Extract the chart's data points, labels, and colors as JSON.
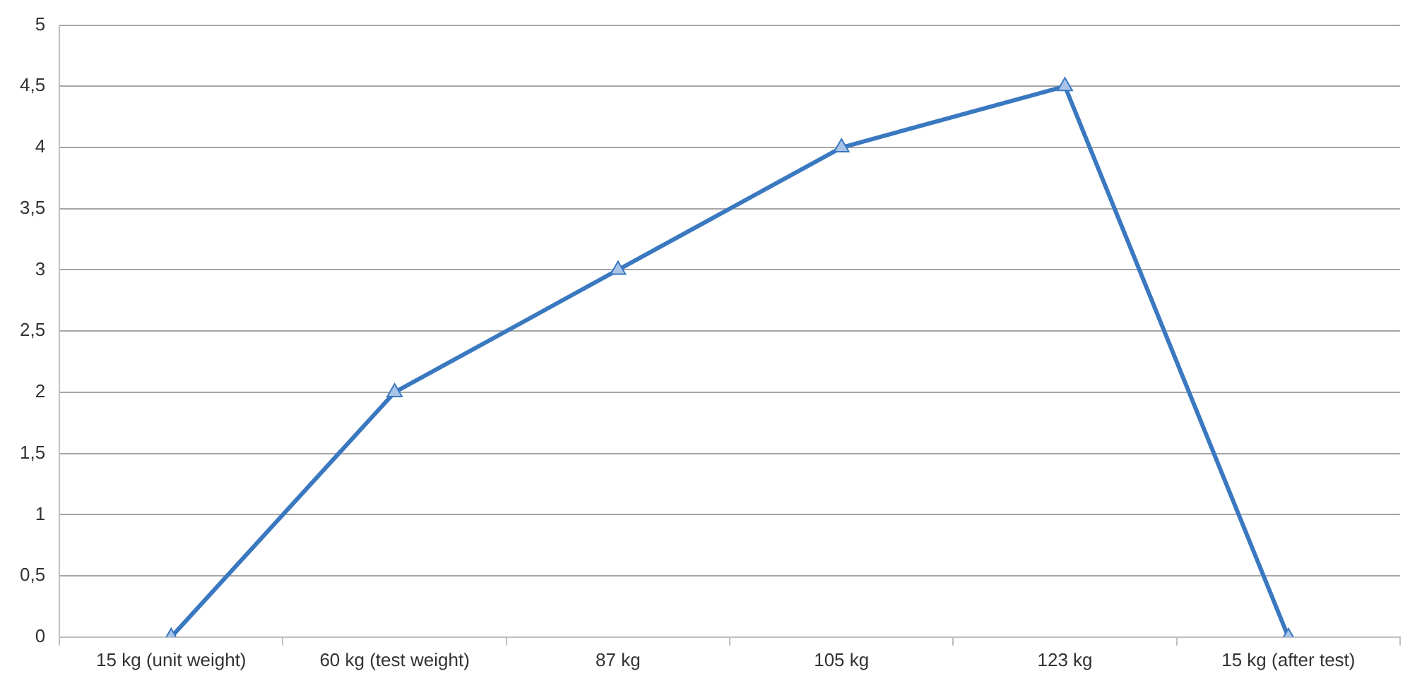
{
  "chart_data": {
    "type": "line",
    "categories": [
      "15 kg (unit weight)",
      "60 kg (test weight)",
      "87 kg",
      "105 kg",
      "123 kg",
      "15 kg (after test)"
    ],
    "series": [
      {
        "color": "#3a78c0",
        "values": [
          0,
          2,
          3,
          4,
          4.5,
          0
        ]
      }
    ],
    "ylim": [
      0,
      5
    ],
    "yticks": [
      0,
      {
        "value": 0.5,
        "label": "0,5"
      },
      1,
      {
        "value": 1.5,
        "label": "1,5"
      },
      2,
      {
        "value": 2.5,
        "label": "2,5"
      },
      3,
      {
        "value": 3.5,
        "label": "3,5"
      },
      4,
      {
        "value": 4.5,
        "label": "4,5"
      },
      5
    ],
    "grid": "y",
    "legend": false,
    "marker": "triangle",
    "line_style": "solid"
  }
}
